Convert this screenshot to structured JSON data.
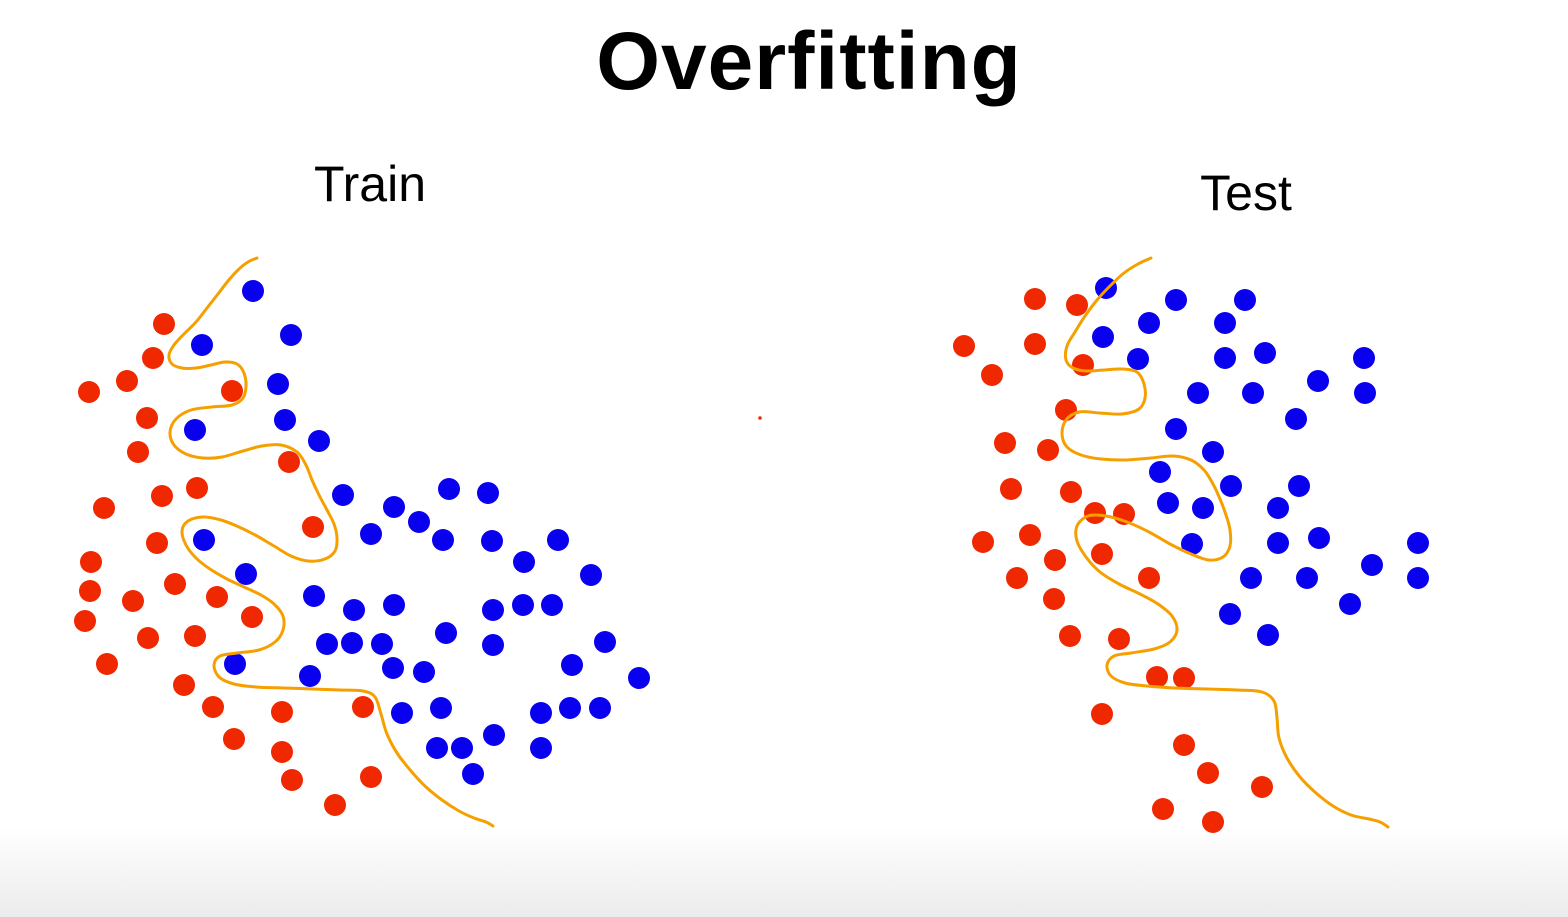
{
  "title": "Overfitting",
  "panels": [
    {
      "id": "train",
      "label": "Train",
      "boundary_color": "#f5a000",
      "boundary_points": [
        [
          257,
          258
        ],
        [
          248,
          262
        ],
        [
          238,
          270
        ],
        [
          228,
          281
        ],
        [
          218,
          294
        ],
        [
          207,
          308
        ],
        [
          196,
          322
        ],
        [
          184,
          334
        ],
        [
          174,
          345
        ],
        [
          169,
          355
        ],
        [
          172,
          364
        ],
        [
          182,
          368
        ],
        [
          196,
          368
        ],
        [
          211,
          365
        ],
        [
          225,
          362
        ],
        [
          237,
          364
        ],
        [
          244,
          373
        ],
        [
          246,
          386
        ],
        [
          243,
          398
        ],
        [
          232,
          405
        ],
        [
          212,
          407
        ],
        [
          191,
          410
        ],
        [
          176,
          419
        ],
        [
          170,
          432
        ],
        [
          174,
          445
        ],
        [
          186,
          454
        ],
        [
          203,
          458
        ],
        [
          222,
          457
        ],
        [
          243,
          451
        ],
        [
          262,
          446
        ],
        [
          281,
          445
        ],
        [
          297,
          452
        ],
        [
          306,
          465
        ],
        [
          312,
          480
        ],
        [
          319,
          495
        ],
        [
          327,
          510
        ],
        [
          334,
          524
        ],
        [
          337,
          538
        ],
        [
          335,
          551
        ],
        [
          325,
          559
        ],
        [
          308,
          561
        ],
        [
          291,
          556
        ],
        [
          274,
          546
        ],
        [
          257,
          536
        ],
        [
          239,
          527
        ],
        [
          221,
          520
        ],
        [
          203,
          517
        ],
        [
          188,
          521
        ],
        [
          182,
          531
        ],
        [
          186,
          545
        ],
        [
          196,
          558
        ],
        [
          210,
          569
        ],
        [
          227,
          579
        ],
        [
          244,
          587
        ],
        [
          261,
          595
        ],
        [
          274,
          604
        ],
        [
          283,
          616
        ],
        [
          283,
          630
        ],
        [
          275,
          642
        ],
        [
          259,
          650
        ],
        [
          237,
          653
        ],
        [
          220,
          656
        ],
        [
          214,
          665
        ],
        [
          219,
          677
        ],
        [
          234,
          684
        ],
        [
          256,
          687
        ],
        [
          284,
          688
        ],
        [
          313,
          689
        ],
        [
          340,
          690
        ],
        [
          363,
          691
        ],
        [
          375,
          697
        ],
        [
          381,
          714
        ],
        [
          387,
          734
        ],
        [
          397,
          753
        ],
        [
          411,
          771
        ],
        [
          426,
          787
        ],
        [
          442,
          800
        ],
        [
          459,
          811
        ],
        [
          474,
          818
        ],
        [
          486,
          822
        ],
        [
          493,
          826
        ]
      ],
      "red_points": [
        [
          164,
          324
        ],
        [
          153,
          358
        ],
        [
          89,
          392
        ],
        [
          127,
          381
        ],
        [
          232,
          391
        ],
        [
          147,
          418
        ],
        [
          138,
          452
        ],
        [
          289,
          462
        ],
        [
          197,
          488
        ],
        [
          162,
          496
        ],
        [
          104,
          508
        ],
        [
          313,
          527
        ],
        [
          157,
          543
        ],
        [
          91,
          562
        ],
        [
          90,
          591
        ],
        [
          133,
          601
        ],
        [
          175,
          584
        ],
        [
          217,
          597
        ],
        [
          252,
          617
        ],
        [
          85,
          621
        ],
        [
          148,
          638
        ],
        [
          195,
          636
        ],
        [
          107,
          664
        ],
        [
          184,
          685
        ],
        [
          213,
          707
        ],
        [
          282,
          712
        ],
        [
          363,
          707
        ],
        [
          234,
          739
        ],
        [
          282,
          752
        ],
        [
          292,
          780
        ],
        [
          371,
          777
        ],
        [
          335,
          805
        ]
      ],
      "blue_points": [
        [
          253,
          291
        ],
        [
          291,
          335
        ],
        [
          202,
          345
        ],
        [
          278,
          384
        ],
        [
          285,
          420
        ],
        [
          195,
          430
        ],
        [
          319,
          441
        ],
        [
          343,
          495
        ],
        [
          394,
          507
        ],
        [
          449,
          489
        ],
        [
          488,
          493
        ],
        [
          419,
          522
        ],
        [
          371,
          534
        ],
        [
          443,
          540
        ],
        [
          204,
          540
        ],
        [
          492,
          541
        ],
        [
          558,
          540
        ],
        [
          524,
          562
        ],
        [
          246,
          574
        ],
        [
          591,
          575
        ],
        [
          314,
          596
        ],
        [
          354,
          610
        ],
        [
          394,
          605
        ],
        [
          493,
          610
        ],
        [
          523,
          605
        ],
        [
          552,
          605
        ],
        [
          327,
          644
        ],
        [
          352,
          643
        ],
        [
          382,
          644
        ],
        [
          446,
          633
        ],
        [
          493,
          645
        ],
        [
          605,
          642
        ],
        [
          235,
          664
        ],
        [
          310,
          676
        ],
        [
          393,
          668
        ],
        [
          424,
          672
        ],
        [
          572,
          665
        ],
        [
          639,
          678
        ],
        [
          402,
          713
        ],
        [
          441,
          708
        ],
        [
          541,
          713
        ],
        [
          570,
          708
        ],
        [
          600,
          708
        ],
        [
          494,
          735
        ],
        [
          437,
          748
        ],
        [
          462,
          748
        ],
        [
          541,
          748
        ],
        [
          473,
          774
        ]
      ]
    },
    {
      "id": "test",
      "label": "Test",
      "boundary_color": "#f5a000",
      "boundary_points": [
        [
          1151,
          258
        ],
        [
          1138,
          264
        ],
        [
          1124,
          273
        ],
        [
          1111,
          285
        ],
        [
          1097,
          300
        ],
        [
          1085,
          316
        ],
        [
          1075,
          332
        ],
        [
          1067,
          346
        ],
        [
          1066,
          360
        ],
        [
          1073,
          368
        ],
        [
          1086,
          371
        ],
        [
          1104,
          370
        ],
        [
          1121,
          369
        ],
        [
          1137,
          372
        ],
        [
          1144,
          384
        ],
        [
          1145,
          398
        ],
        [
          1139,
          409
        ],
        [
          1122,
          414
        ],
        [
          1100,
          413
        ],
        [
          1079,
          412
        ],
        [
          1066,
          420
        ],
        [
          1062,
          434
        ],
        [
          1067,
          447
        ],
        [
          1081,
          455
        ],
        [
          1101,
          459
        ],
        [
          1126,
          460
        ],
        [
          1151,
          458
        ],
        [
          1173,
          456
        ],
        [
          1191,
          460
        ],
        [
          1204,
          470
        ],
        [
          1213,
          484
        ],
        [
          1220,
          499
        ],
        [
          1226,
          515
        ],
        [
          1230,
          530
        ],
        [
          1230,
          546
        ],
        [
          1223,
          557
        ],
        [
          1209,
          560
        ],
        [
          1191,
          554
        ],
        [
          1170,
          544
        ],
        [
          1149,
          532
        ],
        [
          1127,
          522
        ],
        [
          1106,
          516
        ],
        [
          1088,
          516
        ],
        [
          1077,
          526
        ],
        [
          1077,
          541
        ],
        [
          1086,
          557
        ],
        [
          1100,
          572
        ],
        [
          1119,
          584
        ],
        [
          1140,
          594
        ],
        [
          1158,
          604
        ],
        [
          1172,
          616
        ],
        [
          1177,
          630
        ],
        [
          1170,
          642
        ],
        [
          1154,
          649
        ],
        [
          1131,
          653
        ],
        [
          1114,
          656
        ],
        [
          1107,
          665
        ],
        [
          1111,
          676
        ],
        [
          1125,
          683
        ],
        [
          1147,
          686
        ],
        [
          1175,
          688
        ],
        [
          1207,
          689
        ],
        [
          1238,
          690
        ],
        [
          1262,
          692
        ],
        [
          1274,
          701
        ],
        [
          1277,
          718
        ],
        [
          1279,
          738
        ],
        [
          1287,
          758
        ],
        [
          1300,
          777
        ],
        [
          1316,
          793
        ],
        [
          1333,
          806
        ],
        [
          1351,
          815
        ],
        [
          1369,
          819
        ],
        [
          1380,
          822
        ],
        [
          1388,
          827
        ]
      ],
      "red_points": [
        [
          1035,
          299
        ],
        [
          1077,
          305
        ],
        [
          964,
          346
        ],
        [
          1035,
          344
        ],
        [
          1083,
          365
        ],
        [
          992,
          375
        ],
        [
          1066,
          410
        ],
        [
          1005,
          443
        ],
        [
          1048,
          450
        ],
        [
          1011,
          489
        ],
        [
          1071,
          492
        ],
        [
          1095,
          513
        ],
        [
          1124,
          514
        ],
        [
          1030,
          535
        ],
        [
          983,
          542
        ],
        [
          1102,
          554
        ],
        [
          1055,
          560
        ],
        [
          1017,
          578
        ],
        [
          1149,
          578
        ],
        [
          1054,
          599
        ],
        [
          1070,
          636
        ],
        [
          1119,
          639
        ],
        [
          1157,
          677
        ],
        [
          1184,
          678
        ],
        [
          1102,
          714
        ],
        [
          1184,
          745
        ],
        [
          1208,
          773
        ],
        [
          1262,
          787
        ],
        [
          1163,
          809
        ],
        [
          1213,
          822
        ]
      ],
      "blue_points": [
        [
          1106,
          288
        ],
        [
          1176,
          300
        ],
        [
          1245,
          300
        ],
        [
          1149,
          323
        ],
        [
          1225,
          323
        ],
        [
          1103,
          337
        ],
        [
          1138,
          359
        ],
        [
          1225,
          358
        ],
        [
          1265,
          353
        ],
        [
          1364,
          358
        ],
        [
          1198,
          393
        ],
        [
          1253,
          393
        ],
        [
          1318,
          381
        ],
        [
          1365,
          393
        ],
        [
          1296,
          419
        ],
        [
          1176,
          429
        ],
        [
          1213,
          452
        ],
        [
          1160,
          472
        ],
        [
          1231,
          486
        ],
        [
          1299,
          486
        ],
        [
          1168,
          503
        ],
        [
          1203,
          508
        ],
        [
          1278,
          508
        ],
        [
          1192,
          544
        ],
        [
          1278,
          543
        ],
        [
          1319,
          538
        ],
        [
          1418,
          543
        ],
        [
          1251,
          578
        ],
        [
          1307,
          578
        ],
        [
          1372,
          565
        ],
        [
          1418,
          578
        ],
        [
          1230,
          614
        ],
        [
          1350,
          604
        ],
        [
          1268,
          635
        ]
      ]
    }
  ],
  "stray_dot": [
    760,
    418
  ],
  "colors": {
    "red": "#f02800",
    "blue": "#0a00f0",
    "boundary": "#f5a000",
    "title": "#000000"
  }
}
